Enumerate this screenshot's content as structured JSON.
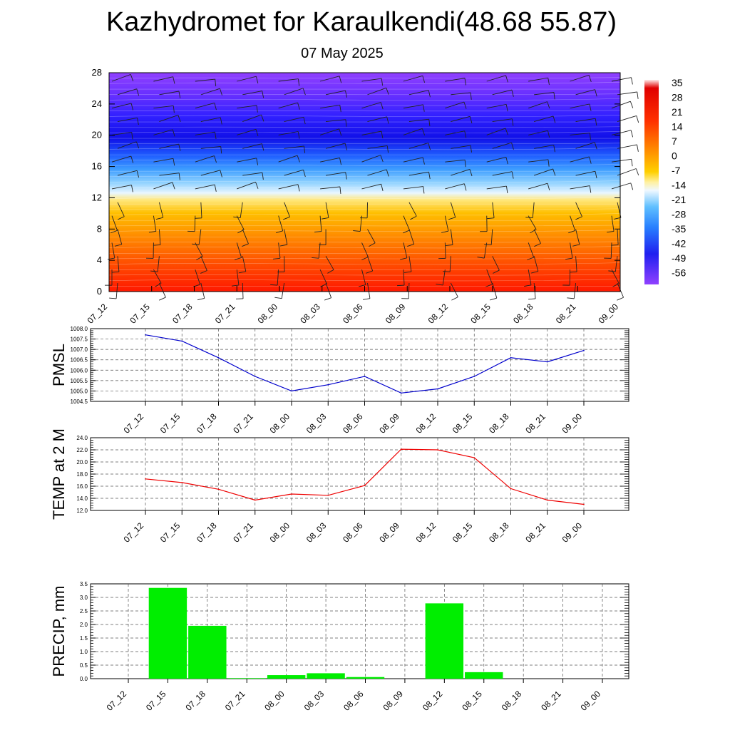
{
  "title": "Kazhydromet for Karaulkendi(48.68 55.87)",
  "date": "07 May 2025",
  "chart_data": [
    {
      "type": "heatmap",
      "name": "temperature-profile",
      "x_ticks": [
        "07_12",
        "07_15",
        "07_18",
        "07_21",
        "08_00",
        "08_03",
        "08_06",
        "08_09",
        "08_12",
        "08_15",
        "08_18",
        "08_21",
        "09_00"
      ],
      "y_ticks": [
        "0",
        "4",
        "8",
        "12",
        "16",
        "20",
        "24",
        "28"
      ],
      "ylim": [
        0,
        28
      ],
      "colorbar_labels": [
        "35",
        "28",
        "21",
        "14",
        "7",
        "0",
        "-7",
        "-14",
        "-21",
        "-28",
        "-35",
        "-42",
        "-49",
        "-56"
      ],
      "colors": {
        "warm": "#ff2000",
        "mid": "#ffe060",
        "freezing": "#e8f4ff",
        "cold": "#2860ff",
        "coldest": "#9040ff"
      }
    },
    {
      "type": "line",
      "ylabel": "PMSL",
      "x_ticks": [
        "07_12",
        "07_15",
        "07_18",
        "07_21",
        "08_00",
        "08_03",
        "08_06",
        "08_09",
        "08_12",
        "08_15",
        "08_18",
        "08_21",
        "09_00"
      ],
      "values": [
        1007.7,
        1007.4,
        1006.6,
        1005.7,
        1005.0,
        1005.3,
        1005.7,
        1004.9,
        1005.1,
        1005.7,
        1006.6,
        1006.4,
        1006.95
      ],
      "ylim": [
        1004.5,
        1008.0
      ],
      "y_ticks": [
        "1004.5",
        "1005.0",
        "1005.5",
        "1006.0",
        "1006.5",
        "1007.0",
        "1007.5",
        "1008.0"
      ],
      "color": "#0000cc"
    },
    {
      "type": "line",
      "ylabel": "TEMP at 2 M",
      "x_ticks": [
        "07_12",
        "07_15",
        "07_18",
        "07_21",
        "08_00",
        "08_03",
        "08_06",
        "08_09",
        "08_12",
        "08_15",
        "08_18",
        "08_21",
        "09_00"
      ],
      "values": [
        17.2,
        16.6,
        15.5,
        13.7,
        14.7,
        14.5,
        16.1,
        22.1,
        22.0,
        20.7,
        15.6,
        13.7,
        13.0
      ],
      "ylim": [
        12.0,
        24.0
      ],
      "y_ticks": [
        "12.0",
        "14.0",
        "16.0",
        "18.0",
        "20.0",
        "22.0",
        "24.0"
      ],
      "color": "#ee0000"
    },
    {
      "type": "bar",
      "ylabel": "PRECIP, mm",
      "x_ticks": [
        "07_12",
        "07_15",
        "07_18",
        "07_21",
        "08_00",
        "08_03",
        "08_06",
        "08_09",
        "08_12",
        "08_15",
        "08_18",
        "08_21",
        "09_00"
      ],
      "values": [
        0,
        3.35,
        1.95,
        0.02,
        0.13,
        0.2,
        0.06,
        0,
        2.78,
        0.24,
        0,
        0,
        0
      ],
      "ylim": [
        0,
        3.5
      ],
      "y_ticks": [
        "0.0",
        "0.5",
        "1.0",
        "1.5",
        "2.0",
        "2.5",
        "3.0",
        "3.5"
      ],
      "color": "#00ee00"
    }
  ]
}
